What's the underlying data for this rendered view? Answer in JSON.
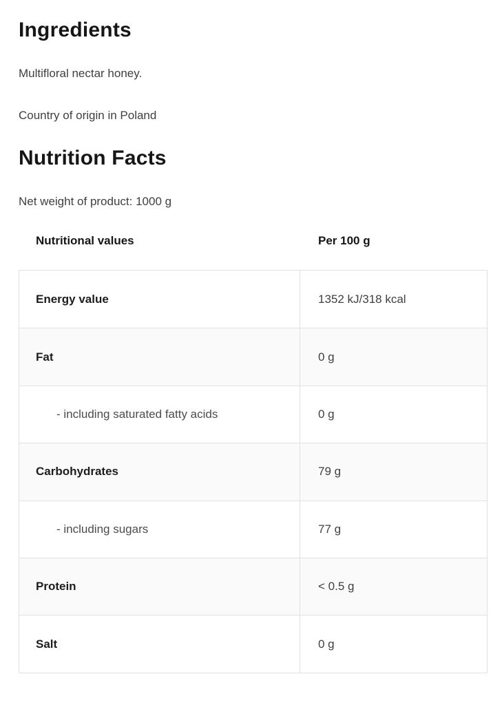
{
  "colors": {
    "heading_text": "#161616",
    "body_text": "#3f3f3f",
    "table_border": "#e1e1e1",
    "zebra_row_bg": "#fafafa",
    "page_bg": "#ffffff"
  },
  "ingredients": {
    "heading": "Ingredients",
    "description": "Multifloral nectar honey.",
    "origin": "Country of origin in Poland"
  },
  "nutrition": {
    "heading": "Nutrition Facts",
    "net_weight": "Net weight of product: 1000 g",
    "table": {
      "col1_header": "Nutritional values",
      "col2_header": "Per 100 g",
      "rows": [
        {
          "label": "Energy value",
          "value": "1352 kJ/318 kcal",
          "type": "main"
        },
        {
          "label": "Fat",
          "value": "0 g",
          "type": "main"
        },
        {
          "label": "- including saturated fatty acids",
          "value": "0 g",
          "type": "sub"
        },
        {
          "label": "Carbohydrates",
          "value": "79 g",
          "type": "main"
        },
        {
          "label": "- including sugars",
          "value": "77 g",
          "type": "sub"
        },
        {
          "label": "Protein",
          "value": "< 0.5 g",
          "type": "main"
        },
        {
          "label": "Salt",
          "value": "0 g",
          "type": "main"
        }
      ]
    }
  }
}
